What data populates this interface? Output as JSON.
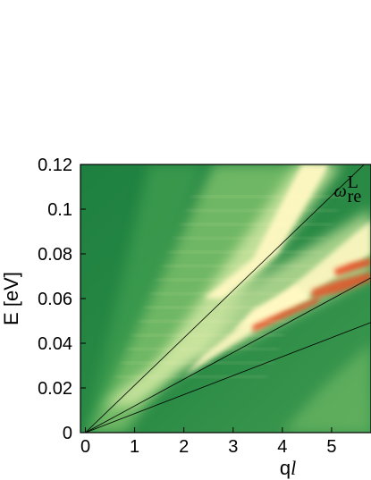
{
  "chart_data": {
    "type": "heatmap",
    "title": "",
    "xlabel": "q",
    "xlabel_italic": "l",
    "ylabel": "E [eV]",
    "xlim": [
      -0.1,
      5.8
    ],
    "ylim": [
      0,
      0.12
    ],
    "x_ticks": [
      {
        "value": 0,
        "label": "0"
      },
      {
        "value": 1,
        "label": "1"
      },
      {
        "value": 2,
        "label": "2"
      },
      {
        "value": 3,
        "label": "3"
      },
      {
        "value": 4,
        "label": "4"
      },
      {
        "value": 5,
        "label": "5"
      }
    ],
    "y_ticks": [
      {
        "value": 0,
        "label": "0"
      },
      {
        "value": 0.02,
        "label": "0.02"
      },
      {
        "value": 0.04,
        "label": "0.04"
      },
      {
        "value": 0.06,
        "label": "0.06"
      },
      {
        "value": 0.08,
        "label": "0.08"
      },
      {
        "value": 0.1,
        "label": "0.1"
      },
      {
        "value": 0.12,
        "label": "0.12"
      }
    ],
    "colormap": [
      "#1e8040",
      "#3a9a4e",
      "#7cc06a",
      "#cde6a0",
      "#fff8c2",
      "#fbd48e",
      "#e84a24"
    ],
    "lines": [
      {
        "slope": 0.0212,
        "color": "#000000"
      },
      {
        "slope": 0.01195,
        "color": "#000000"
      },
      {
        "slope": 0.0085,
        "color": "#000000"
      }
    ],
    "annotation": {
      "symbol": "ω",
      "superscript": "L",
      "subscript": "re",
      "x": 5.05,
      "y": 0.108
    }
  }
}
